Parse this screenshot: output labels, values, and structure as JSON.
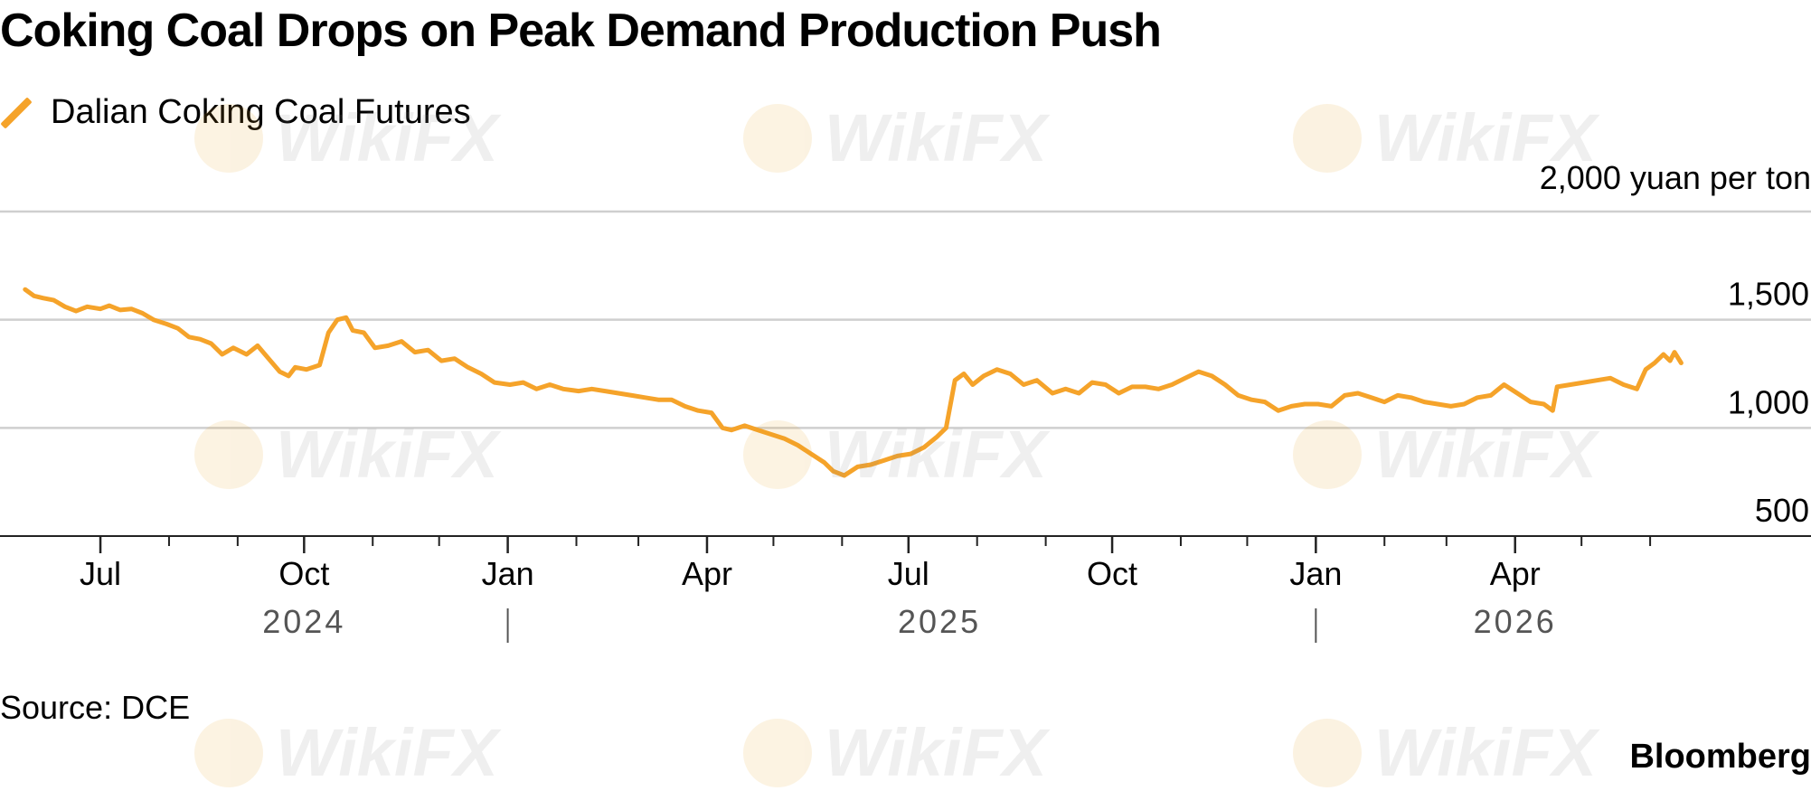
{
  "chart_data": {
    "type": "line",
    "title": "Coking Coal Drops on Peak Demand Production Push",
    "series": [
      {
        "name": "Dalian Coking Coal Futures",
        "color": "#f5a32a",
        "points": [
          [
            "2024-05-28",
            1640
          ],
          [
            "2024-06-01",
            1610
          ],
          [
            "2024-06-05",
            1600
          ],
          [
            "2024-06-10",
            1590
          ],
          [
            "2024-06-15",
            1560
          ],
          [
            "2024-06-20",
            1540
          ],
          [
            "2024-06-25",
            1560
          ],
          [
            "2024-07-01",
            1550
          ],
          [
            "2024-07-05",
            1565
          ],
          [
            "2024-07-10",
            1545
          ],
          [
            "2024-07-15",
            1550
          ],
          [
            "2024-07-20",
            1530
          ],
          [
            "2024-07-25",
            1500
          ],
          [
            "2024-07-31",
            1480
          ],
          [
            "2024-08-05",
            1460
          ],
          [
            "2024-08-10",
            1420
          ],
          [
            "2024-08-15",
            1410
          ],
          [
            "2024-08-20",
            1390
          ],
          [
            "2024-08-25",
            1340
          ],
          [
            "2024-08-30",
            1370
          ],
          [
            "2024-09-05",
            1340
          ],
          [
            "2024-09-10",
            1380
          ],
          [
            "2024-09-15",
            1320
          ],
          [
            "2024-09-20",
            1260
          ],
          [
            "2024-09-24",
            1240
          ],
          [
            "2024-09-27",
            1280
          ],
          [
            "2024-10-02",
            1270
          ],
          [
            "2024-10-08",
            1290
          ],
          [
            "2024-10-12",
            1440
          ],
          [
            "2024-10-16",
            1500
          ],
          [
            "2024-10-20",
            1510
          ],
          [
            "2024-10-23",
            1450
          ],
          [
            "2024-10-28",
            1440
          ],
          [
            "2024-11-02",
            1370
          ],
          [
            "2024-11-08",
            1380
          ],
          [
            "2024-11-14",
            1400
          ],
          [
            "2024-11-20",
            1350
          ],
          [
            "2024-11-26",
            1360
          ],
          [
            "2024-12-02",
            1310
          ],
          [
            "2024-12-08",
            1320
          ],
          [
            "2024-12-14",
            1280
          ],
          [
            "2024-12-20",
            1250
          ],
          [
            "2024-12-26",
            1210
          ],
          [
            "2025-01-02",
            1200
          ],
          [
            "2025-01-08",
            1210
          ],
          [
            "2025-01-14",
            1180
          ],
          [
            "2025-01-20",
            1200
          ],
          [
            "2025-01-26",
            1180
          ],
          [
            "2025-02-02",
            1170
          ],
          [
            "2025-02-08",
            1180
          ],
          [
            "2025-02-14",
            1170
          ],
          [
            "2025-02-20",
            1160
          ],
          [
            "2025-02-26",
            1150
          ],
          [
            "2025-03-04",
            1140
          ],
          [
            "2025-03-10",
            1130
          ],
          [
            "2025-03-16",
            1130
          ],
          [
            "2025-03-22",
            1100
          ],
          [
            "2025-03-28",
            1080
          ],
          [
            "2025-04-03",
            1070
          ],
          [
            "2025-04-08",
            1000
          ],
          [
            "2025-04-12",
            990
          ],
          [
            "2025-04-18",
            1010
          ],
          [
            "2025-04-24",
            990
          ],
          [
            "2025-04-30",
            970
          ],
          [
            "2025-05-06",
            950
          ],
          [
            "2025-05-12",
            920
          ],
          [
            "2025-05-18",
            880
          ],
          [
            "2025-05-24",
            840
          ],
          [
            "2025-05-28",
            800
          ],
          [
            "2025-06-02",
            780
          ],
          [
            "2025-06-08",
            820
          ],
          [
            "2025-06-14",
            830
          ],
          [
            "2025-06-20",
            850
          ],
          [
            "2025-06-26",
            870
          ],
          [
            "2025-07-02",
            880
          ],
          [
            "2025-07-08",
            910
          ],
          [
            "2025-07-14",
            960
          ],
          [
            "2025-07-18",
            1000
          ],
          [
            "2025-07-22",
            1220
          ],
          [
            "2025-07-26",
            1250
          ],
          [
            "2025-07-30",
            1200
          ],
          [
            "2025-08-04",
            1240
          ],
          [
            "2025-08-10",
            1270
          ],
          [
            "2025-08-16",
            1250
          ],
          [
            "2025-08-22",
            1200
          ],
          [
            "2025-08-28",
            1220
          ],
          [
            "2025-09-04",
            1160
          ],
          [
            "2025-09-10",
            1180
          ],
          [
            "2025-09-16",
            1160
          ],
          [
            "2025-09-22",
            1210
          ],
          [
            "2025-09-28",
            1200
          ],
          [
            "2025-10-04",
            1160
          ],
          [
            "2025-10-10",
            1190
          ],
          [
            "2025-10-16",
            1190
          ],
          [
            "2025-10-22",
            1180
          ],
          [
            "2025-10-28",
            1200
          ],
          [
            "2025-11-03",
            1230
          ],
          [
            "2025-11-09",
            1260
          ],
          [
            "2025-11-15",
            1240
          ],
          [
            "2025-11-21",
            1200
          ],
          [
            "2025-11-27",
            1150
          ],
          [
            "2025-12-03",
            1130
          ],
          [
            "2025-12-09",
            1120
          ],
          [
            "2025-12-15",
            1080
          ],
          [
            "2025-12-21",
            1100
          ],
          [
            "2025-12-27",
            1110
          ],
          [
            "2026-01-02",
            1110
          ],
          [
            "2026-01-08",
            1100
          ],
          [
            "2026-01-14",
            1150
          ],
          [
            "2026-01-20",
            1160
          ],
          [
            "2026-01-26",
            1140
          ],
          [
            "2026-02-01",
            1120
          ],
          [
            "2026-02-07",
            1150
          ],
          [
            "2026-02-13",
            1140
          ],
          [
            "2026-02-19",
            1120
          ],
          [
            "2026-02-25",
            1110
          ],
          [
            "2026-03-03",
            1100
          ],
          [
            "2026-03-09",
            1110
          ],
          [
            "2026-03-15",
            1140
          ],
          [
            "2026-03-21",
            1150
          ],
          [
            "2026-03-27",
            1200
          ],
          [
            "2026-04-02",
            1160
          ],
          [
            "2026-04-08",
            1120
          ],
          [
            "2026-04-14",
            1110
          ],
          [
            "2026-04-18",
            1080
          ],
          [
            "2026-04-20",
            1190
          ],
          [
            "2026-04-26",
            1200
          ],
          [
            "2026-05-02",
            1210
          ],
          [
            "2026-05-08",
            1220
          ],
          [
            "2026-05-14",
            1230
          ],
          [
            "2026-05-20",
            1200
          ],
          [
            "2026-05-26",
            1180
          ],
          [
            "2026-05-30",
            1270
          ],
          [
            "2026-06-03",
            1300
          ],
          [
            "2026-06-07",
            1340
          ],
          [
            "2026-06-10",
            1310
          ],
          [
            "2026-06-12",
            1350
          ],
          [
            "2026-06-15",
            1300
          ]
        ]
      }
    ],
    "xlim": [
      "2024-05-24",
      "2026-07-31"
    ],
    "ylim": [
      500,
      2000
    ],
    "yticks": [
      {
        "value": 500,
        "label": "500"
      },
      {
        "value": 1000,
        "label": "1,000"
      },
      {
        "value": 1500,
        "label": "1,500"
      },
      {
        "value": 2000,
        "label": "2,000"
      }
    ],
    "ylabel": "yuan per ton",
    "ylabel_full": "2,000 yuan per ton",
    "grid": true,
    "legend_position": "top-left",
    "month_labels": [
      {
        "date": "2024-07-01",
        "label": "Jul"
      },
      {
        "date": "2024-10-01",
        "label": "Oct"
      },
      {
        "date": "2025-01-01",
        "label": "Jan"
      },
      {
        "date": "2025-04-01",
        "label": "Apr"
      },
      {
        "date": "2025-07-01",
        "label": "Jul"
      },
      {
        "date": "2025-10-01",
        "label": "Oct"
      },
      {
        "date": "2026-01-01",
        "label": "Jan"
      },
      {
        "date": "2026-04-01",
        "label": "Apr"
      }
    ],
    "minor_ticks": [
      "2024-08-01",
      "2024-09-01",
      "2024-11-01",
      "2024-12-01",
      "2025-02-01",
      "2025-03-01",
      "2025-05-01",
      "2025-06-01",
      "2025-08-01",
      "2025-09-01",
      "2025-11-01",
      "2025-12-01",
      "2026-02-01",
      "2026-03-01",
      "2026-05-01",
      "2026-06-01"
    ],
    "year_labels": [
      {
        "date": "2024-10-01",
        "label": "2024"
      },
      {
        "date": "2025-07-15",
        "label": "2025"
      },
      {
        "date": "2026-04-01",
        "label": "2026"
      }
    ],
    "year_dividers": [
      "2025-01-01",
      "2026-01-01"
    ]
  },
  "footer": {
    "source": "Source: DCE",
    "brand": "Bloomberg"
  },
  "watermark": {
    "text": "WikiFX"
  }
}
